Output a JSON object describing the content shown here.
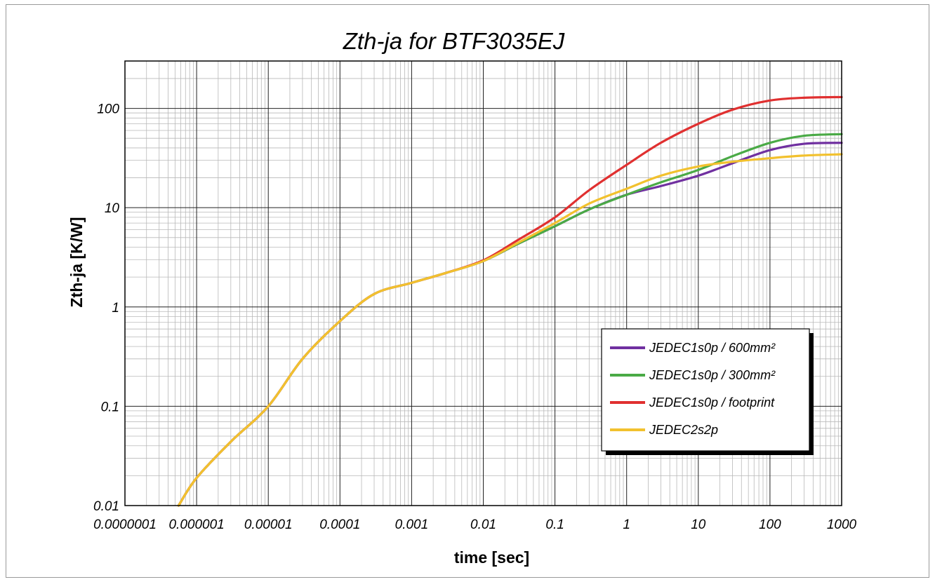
{
  "chart_data": {
    "type": "line",
    "title": "Zth-ja for BTF3035EJ",
    "xlabel": "time [sec]",
    "ylabel": "Zth-ja [K/W]",
    "xscale": "log",
    "yscale": "log",
    "xlim": [
      1e-07,
      1000
    ],
    "ylim": [
      0.01,
      300
    ],
    "grid": true,
    "legend_position": "lower-right",
    "x_tick_labels": [
      "0.0000001",
      "0.000001",
      "0.00001",
      "0.0001",
      "0.001",
      "0.01",
      "0.1",
      "1",
      "10",
      "100",
      "1000"
    ],
    "y_tick_labels": [
      "0.01",
      "0.1",
      "1",
      "10",
      "100"
    ],
    "series": [
      {
        "name": "JEDEC1s0p / 600mm²",
        "color": "#7030a0",
        "x": [
          5.6e-07,
          1e-06,
          3e-06,
          1e-05,
          3e-05,
          0.0001,
          0.0003,
          0.001,
          0.003,
          0.01,
          0.03,
          0.1,
          0.3,
          1,
          3,
          10,
          30,
          100,
          300,
          1000
        ],
        "y": [
          0.01,
          0.019,
          0.044,
          0.1,
          0.3,
          0.72,
          1.35,
          1.75,
          2.2,
          2.9,
          4.3,
          6.5,
          9.6,
          13.5,
          16.5,
          21,
          28,
          38,
          44,
          45
        ]
      },
      {
        "name": "JEDEC1s0p / 300mm²",
        "color": "#4aaa46",
        "x": [
          5.6e-07,
          1e-06,
          3e-06,
          1e-05,
          3e-05,
          0.0001,
          0.0003,
          0.001,
          0.003,
          0.01,
          0.03,
          0.1,
          0.3,
          1,
          3,
          10,
          30,
          100,
          300,
          1000
        ],
        "y": [
          0.01,
          0.019,
          0.044,
          0.1,
          0.3,
          0.72,
          1.35,
          1.75,
          2.2,
          2.9,
          4.3,
          6.5,
          9.6,
          13.5,
          18,
          24,
          33,
          45,
          53,
          55
        ]
      },
      {
        "name": "JEDEC1s0p / footprint",
        "color": "#e03030",
        "x": [
          5.6e-07,
          1e-06,
          3e-06,
          1e-05,
          3e-05,
          0.0001,
          0.0003,
          0.001,
          0.003,
          0.01,
          0.03,
          0.1,
          0.3,
          1,
          3,
          10,
          30,
          100,
          300,
          1000
        ],
        "y": [
          0.01,
          0.019,
          0.044,
          0.1,
          0.3,
          0.72,
          1.35,
          1.75,
          2.2,
          2.95,
          4.7,
          8,
          15,
          27,
          45,
          70,
          97,
          120,
          128,
          130
        ]
      },
      {
        "name": "JEDEC2s2p",
        "color": "#f2c12e",
        "x": [
          5.6e-07,
          1e-06,
          3e-06,
          1e-05,
          3e-05,
          0.0001,
          0.0003,
          0.001,
          0.003,
          0.01,
          0.03,
          0.1,
          0.3,
          1,
          3,
          10,
          30,
          100,
          300,
          1000
        ],
        "y": [
          0.01,
          0.019,
          0.044,
          0.1,
          0.3,
          0.72,
          1.35,
          1.75,
          2.2,
          2.9,
          4.4,
          7,
          11,
          15.5,
          21,
          26,
          29,
          31.5,
          33.5,
          34.5
        ]
      }
    ]
  }
}
